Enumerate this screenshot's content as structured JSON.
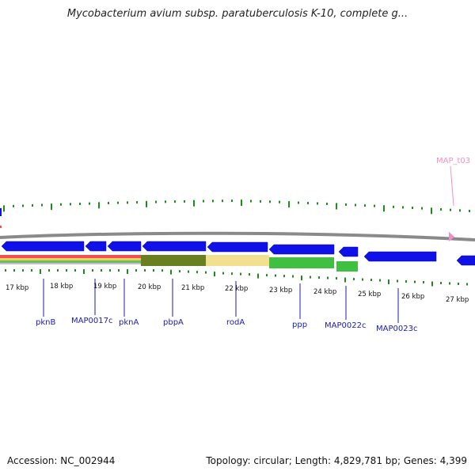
{
  "header": {
    "title": "Mycobacterium avium subsp. paratuberculosis K-10, complete g..."
  },
  "footer": {
    "accession": "Accession: NC_002944",
    "summary": "Topology: circular; Length: 4,829,781 bp; Genes: 4,399"
  },
  "colors": {
    "gene": "#1010e8",
    "gene_label": "#1a1ab0",
    "tick": "#1e8a1e",
    "backbone": "#8a8a8a",
    "trna": "#f090c8"
  },
  "scale": {
    "unit": "kbp",
    "labels": [
      "17 kbp",
      "18 kbp",
      "19 kbp",
      "20 kbp",
      "21 kbp",
      "22 kbp",
      "23 kbp",
      "24 kbp",
      "25 kbp",
      "26 kbp",
      "27 kbp"
    ]
  },
  "genes": [
    {
      "label": "pknB",
      "strand": "reverse"
    },
    {
      "label": "MAP0017c",
      "strand": "reverse"
    },
    {
      "label": "pknA",
      "strand": "reverse"
    },
    {
      "label": "pbpA",
      "strand": "reverse"
    },
    {
      "label": "rodA",
      "strand": "reverse"
    },
    {
      "label": "ppp",
      "strand": "reverse"
    },
    {
      "label": "MAP0022c",
      "strand": "reverse"
    },
    {
      "label": "MAP0023c",
      "strand": "reverse"
    }
  ],
  "trna": {
    "label": "MAP_t03"
  }
}
